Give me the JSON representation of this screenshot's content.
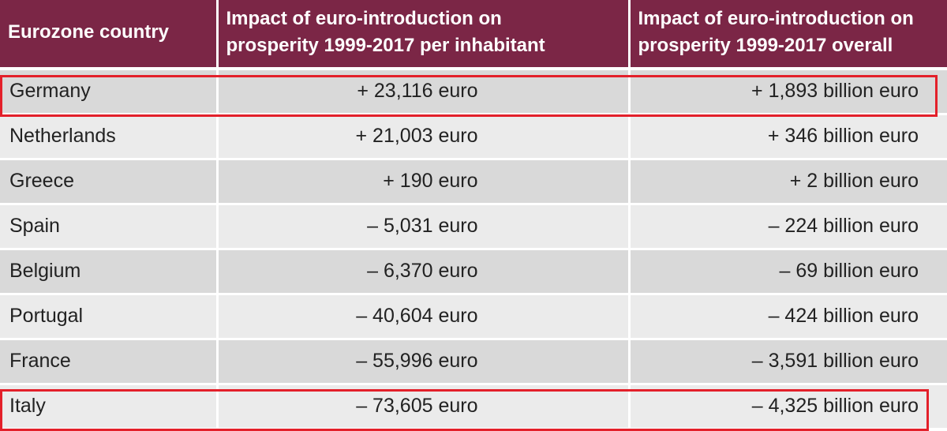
{
  "chart_data": {
    "type": "table",
    "columns": [
      "Eurozone country",
      "Impact of euro-introduction on prosperity 1999-2017 per inhabitant",
      "Impact of euro-introduction on prosperity 1999-2017 overall"
    ],
    "header_lines": [
      [
        "Eurozone country"
      ],
      [
        "Impact of euro-introduction on",
        "prosperity 1999-2017 per inhabitant"
      ],
      [
        "Impact of euro-introduction on",
        "prosperity 1999-2017 overall"
      ]
    ],
    "rows": [
      {
        "country": "Germany",
        "per_inhabitant": "+ 23,116 euro",
        "overall": "+ 1,893 billion euro",
        "per_inhabitant_value": 23116,
        "overall_value_billion": 1893,
        "highlighted": true
      },
      {
        "country": "Netherlands",
        "per_inhabitant": "+ 21,003 euro",
        "overall": "+ 346 billion euro",
        "per_inhabitant_value": 21003,
        "overall_value_billion": 346,
        "highlighted": false
      },
      {
        "country": "Greece",
        "per_inhabitant": "+ 190 euro",
        "overall": "+ 2 billion euro",
        "per_inhabitant_value": 190,
        "overall_value_billion": 2,
        "highlighted": false
      },
      {
        "country": "Spain",
        "per_inhabitant": "– 5,031 euro",
        "overall": "– 224 billion euro",
        "per_inhabitant_value": -5031,
        "overall_value_billion": -224,
        "highlighted": false
      },
      {
        "country": "Belgium",
        "per_inhabitant": "– 6,370 euro",
        "overall": "– 69 billion euro",
        "per_inhabitant_value": -6370,
        "overall_value_billion": -69,
        "highlighted": false
      },
      {
        "country": "Portugal",
        "per_inhabitant": "– 40,604 euro",
        "overall": "– 424 billion euro",
        "per_inhabitant_value": -40604,
        "overall_value_billion": -424,
        "highlighted": false
      },
      {
        "country": "France",
        "per_inhabitant": "– 55,996 euro",
        "overall": "– 3,591 billion euro",
        "per_inhabitant_value": -55996,
        "overall_value_billion": -3591,
        "highlighted": false
      },
      {
        "country": "Italy",
        "per_inhabitant": "– 73,605 euro",
        "overall": "– 4,325 billion euro",
        "per_inhabitant_value": -73605,
        "overall_value_billion": -4325,
        "highlighted": true
      }
    ],
    "colors": {
      "header_bg": "#7b2646",
      "header_text": "#ffffff",
      "row_dark": "#d9d9d9",
      "row_light": "#ebebeb",
      "highlight_border": "#e3202a"
    }
  }
}
